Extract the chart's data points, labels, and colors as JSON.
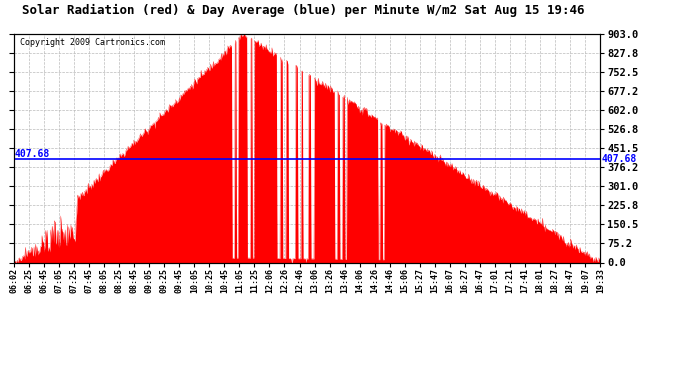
{
  "title": "Solar Radiation (red) & Day Average (blue) per Minute W/m2 Sat Aug 15 19:46",
  "copyright": "Copyright 2009 Cartronics.com",
  "y_max": 903.0,
  "y_min": 0.0,
  "y_ticks": [
    0.0,
    75.2,
    150.5,
    225.8,
    301.0,
    376.2,
    451.5,
    526.8,
    602.0,
    677.2,
    752.5,
    827.8,
    903.0
  ],
  "day_average": 407.68,
  "fill_color": "red",
  "line_color": "blue",
  "background_color": "white",
  "grid_color": "#bbbbbb",
  "x_labels": [
    "06:02",
    "06:25",
    "06:45",
    "07:05",
    "07:25",
    "07:45",
    "08:05",
    "08:25",
    "08:45",
    "09:05",
    "09:25",
    "09:45",
    "10:05",
    "10:25",
    "10:45",
    "11:05",
    "11:25",
    "12:06",
    "12:26",
    "12:46",
    "13:06",
    "13:26",
    "13:46",
    "14:06",
    "14:26",
    "14:46",
    "15:06",
    "15:27",
    "15:47",
    "16:07",
    "16:27",
    "16:47",
    "17:01",
    "17:21",
    "17:41",
    "18:01",
    "18:27",
    "18:47",
    "19:07",
    "19:33"
  ]
}
